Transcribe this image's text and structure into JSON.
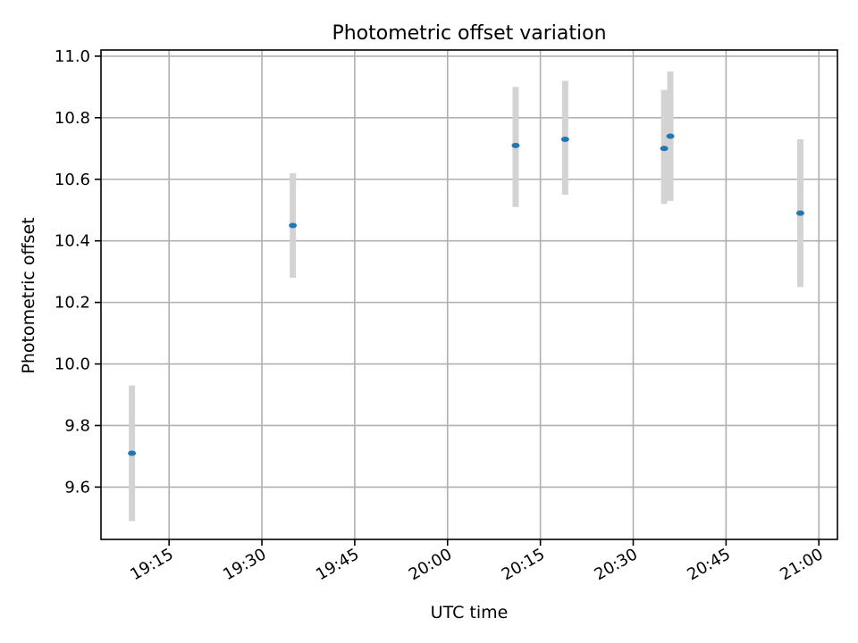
{
  "chart_data": {
    "type": "scatter",
    "title": "Photometric offset variation",
    "xlabel": "UTC time",
    "ylabel": "Photometric offset",
    "ylim": [
      9.43,
      11.02
    ],
    "xlim": [
      "19:04",
      "21:03"
    ],
    "x_ticks": [
      "19:15",
      "19:30",
      "19:45",
      "20:00",
      "20:15",
      "20:30",
      "20:45",
      "21:00"
    ],
    "y_ticks": [
      "9.6",
      "9.8",
      "10.0",
      "10.2",
      "10.4",
      "10.6",
      "10.8",
      "11.0"
    ],
    "grid": true,
    "marker_color": "#1f77b4",
    "errorbar_color": "#d3d3d3",
    "points": [
      {
        "x": "19:09",
        "y": 9.71,
        "ylow": 9.49,
        "yhigh": 9.93
      },
      {
        "x": "19:35",
        "y": 10.45,
        "ylow": 10.28,
        "yhigh": 10.62
      },
      {
        "x": "20:11",
        "y": 10.71,
        "ylow": 10.51,
        "yhigh": 10.9
      },
      {
        "x": "20:19",
        "y": 10.73,
        "ylow": 10.55,
        "yhigh": 10.92
      },
      {
        "x": "20:35",
        "y": 10.7,
        "ylow": 10.52,
        "yhigh": 10.89
      },
      {
        "x": "20:36",
        "y": 10.74,
        "ylow": 10.53,
        "yhigh": 10.95
      },
      {
        "x": "20:57",
        "y": 10.49,
        "ylow": 10.25,
        "yhigh": 10.73
      }
    ]
  }
}
